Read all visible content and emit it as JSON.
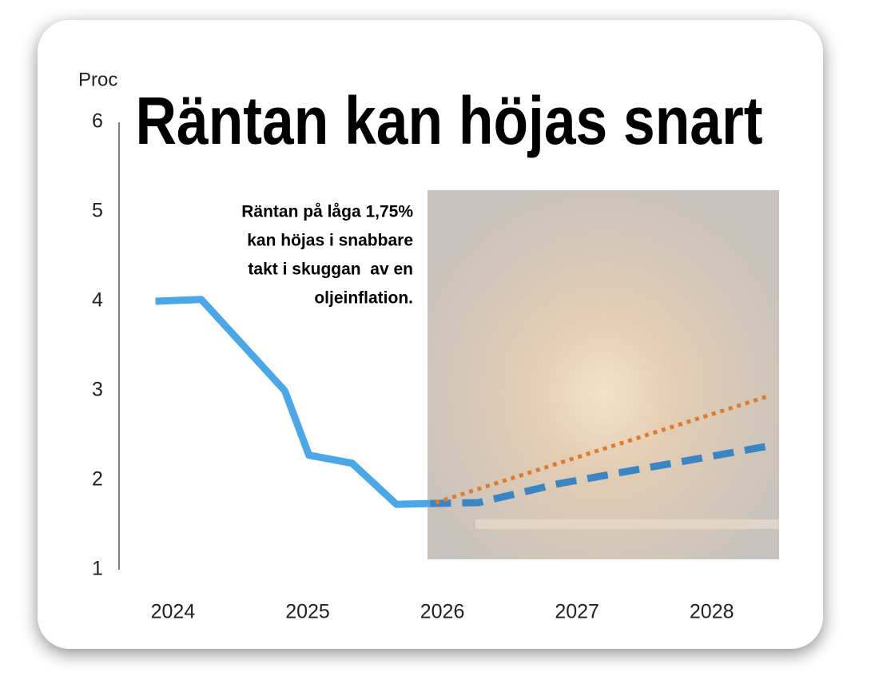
{
  "chart_data": {
    "type": "line",
    "title": "Räntan kan höjas snart",
    "y_label": "Proc",
    "annotation": [
      "Räntan på låga 1,75%",
      "kan höjas i snabbare",
      "takt i skuggan  av en",
      "oljeinflation."
    ],
    "xlim": [
      2023.6,
      2028.5
    ],
    "xticks": [
      2024,
      2025,
      2026,
      2027,
      2028
    ],
    "ylim": [
      1,
      6
    ],
    "yticks": [
      1,
      2,
      3,
      4,
      5,
      6
    ],
    "series": [
      {
        "color": "#4aa8e8",
        "dash": "solid",
        "x": [
          2023.87,
          2024.21,
          2024.83,
          2025.01,
          2025.33,
          2025.66,
          2025.91
        ],
        "values": [
          4.0,
          4.02,
          3.0,
          2.28,
          2.19,
          1.73,
          1.74
        ]
      },
      {
        "color": "#3a86c4",
        "dash": "dashed",
        "x": [
          2025.91,
          2026.27,
          2026.86,
          2027.45,
          2028.45
        ],
        "values": [
          1.74,
          1.75,
          1.96,
          2.12,
          2.39
        ]
      },
      {
        "color": "#e07b2a",
        "dash": "dotted",
        "x": [
          2025.95,
          2028.42
        ],
        "values": [
          1.75,
          2.94
        ]
      }
    ]
  }
}
